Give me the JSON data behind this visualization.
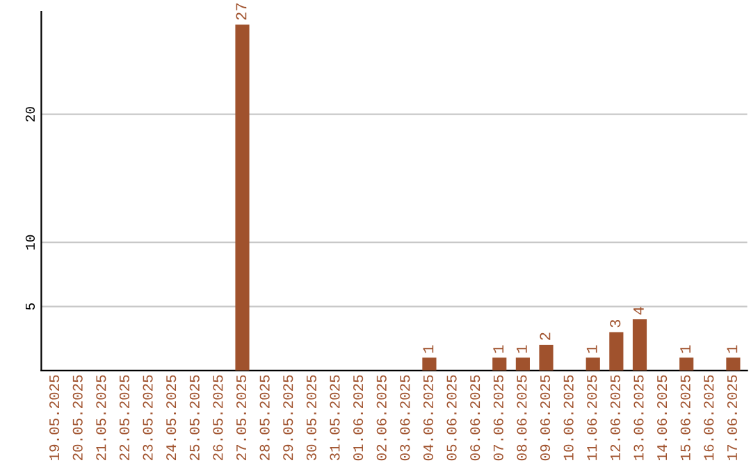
{
  "chart_data": {
    "type": "bar",
    "categories": [
      "19.05.2025",
      "20.05.2025",
      "21.05.2025",
      "22.05.2025",
      "23.05.2025",
      "24.05.2025",
      "25.05.2025",
      "26.05.2025",
      "27.05.2025",
      "28.05.2025",
      "29.05.2025",
      "30.05.2025",
      "31.05.2025",
      "01.06.2025",
      "02.06.2025",
      "03.06.2025",
      "04.06.2025",
      "05.06.2025",
      "06.06.2025",
      "07.06.2025",
      "08.06.2025",
      "09.06.2025",
      "10.06.2025",
      "11.06.2025",
      "12.06.2025",
      "13.06.2025",
      "14.06.2025",
      "15.06.2025",
      "16.06.2025",
      "17.06.2025"
    ],
    "values": [
      0,
      0,
      0,
      0,
      0,
      0,
      0,
      0,
      27,
      0,
      0,
      0,
      0,
      0,
      0,
      0,
      1,
      0,
      0,
      1,
      1,
      2,
      0,
      1,
      3,
      4,
      0,
      1,
      0,
      1
    ],
    "value_labels": [
      null,
      null,
      null,
      null,
      null,
      null,
      null,
      null,
      "27",
      null,
      null,
      null,
      null,
      null,
      null,
      null,
      "1",
      null,
      null,
      "1",
      "1",
      "2",
      null,
      "1",
      "3",
      "4",
      null,
      "1",
      null,
      "1"
    ],
    "color": "#a0522d",
    "ylim": [
      0,
      28
    ],
    "yticks": [
      5,
      10,
      20
    ],
    "grid": "y"
  }
}
